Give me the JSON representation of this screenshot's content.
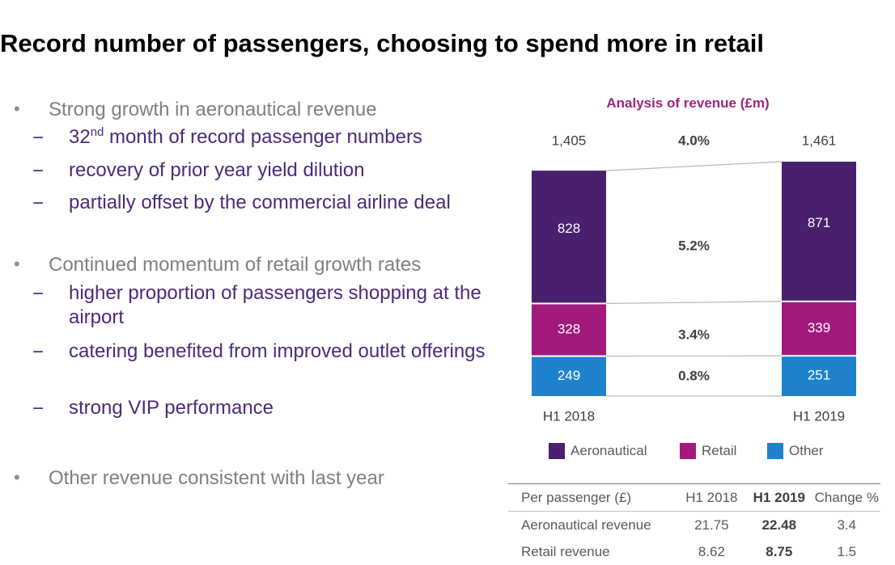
{
  "title": "Record number of passengers, choosing to spend more in retail",
  "bullets": [
    {
      "text": "Strong growth in aeronautical revenue",
      "subs": [
        {
          "pre": "32",
          "sup": "nd",
          "post": " month of record passenger numbers"
        },
        {
          "text": "recovery of prior year yield dilution"
        },
        {
          "text": "partially offset by the commercial airline deal"
        }
      ]
    },
    {
      "text": "Continued momentum of retail growth rates",
      "subs": [
        {
          "text": "higher proportion of passengers shopping at the airport"
        },
        {
          "text": "catering benefited from improved outlet offerings"
        },
        {
          "text": "strong VIP performance"
        }
      ]
    },
    {
      "text": "Other revenue consistent with last year"
    }
  ],
  "chart_data": {
    "type": "bar",
    "title": "Analysis of revenue (£m)",
    "categories": [
      "H1 2018",
      "H1 2019"
    ],
    "stacked": true,
    "series": [
      {
        "name": "Aeronautical",
        "values": [
          828,
          871
        ],
        "color": "#48206e"
      },
      {
        "name": "Retail",
        "values": [
          328,
          339
        ],
        "color": "#a11a7c"
      },
      {
        "name": "Other",
        "values": [
          249,
          251
        ],
        "color": "#1e82cd"
      }
    ],
    "totals": [
      "1,405",
      "1,461"
    ],
    "total_change": "4.0%",
    "series_changes": [
      "5.2%",
      "3.4%",
      "0.8%"
    ],
    "legend_position": "bottom",
    "grid": false,
    "bar_label_color": "#ffffff",
    "label_color": "#404040"
  },
  "per_passenger_table": {
    "headers": [
      "Per passenger (£)",
      "H1 2018",
      "H1 2019",
      "Change %"
    ],
    "rows": [
      [
        "Aeronautical revenue",
        "21.75",
        "22.48",
        "3.4"
      ],
      [
        "Retail revenue",
        "8.62",
        "8.75",
        "1.5"
      ]
    ]
  }
}
